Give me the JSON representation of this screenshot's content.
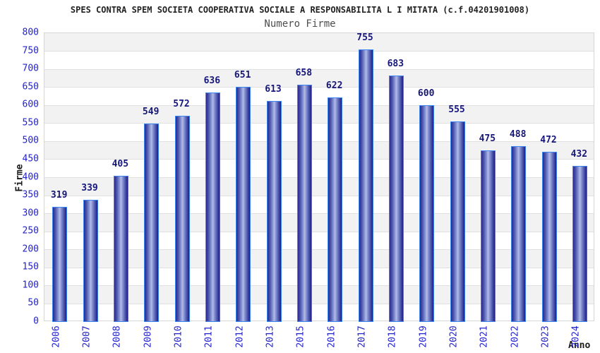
{
  "header": {
    "title": "SPES CONTRA SPEM SOCIETA COOPERATIVA SOCIALE A RESPONSABILITA L I MITATA (c.f.04201901008)",
    "subtitle": "Numero Firme"
  },
  "chart_data": {
    "type": "bar",
    "title": "SPES CONTRA SPEM SOCIETA COOPERATIVA SOCIALE A RESPONSABILITA L I MITATA (c.f.04201901008)",
    "subtitle": "Numero Firme",
    "xlabel": "Anno",
    "ylabel": "Firme",
    "categories": [
      "2006",
      "2007",
      "2008",
      "2009",
      "2010",
      "2011",
      "2012",
      "2013",
      "2015",
      "2016",
      "2017",
      "2018",
      "2019",
      "2020",
      "2021",
      "2022",
      "2023",
      "2024"
    ],
    "values": [
      319,
      339,
      405,
      549,
      572,
      636,
      651,
      613,
      658,
      622,
      755,
      683,
      600,
      555,
      475,
      488,
      472,
      432
    ],
    "ylim": [
      0,
      800
    ],
    "ytick_step": 50,
    "grid": "horizontal",
    "legend_position": "none",
    "colors": {
      "tick_label": "#2222cc",
      "value_label": "#16167a",
      "title": "#222222",
      "subtitle": "#4d4d4d",
      "axis_title": "#1a1a1a",
      "band": "#f2f2f2",
      "gridline": "#e0e0e0",
      "plot_border": "#d6d6d6",
      "bar_border": "#3d86f0",
      "bar_dark": "#23238f",
      "bar_mid": "#6672c0",
      "bar_light": "#b3bce9"
    }
  }
}
